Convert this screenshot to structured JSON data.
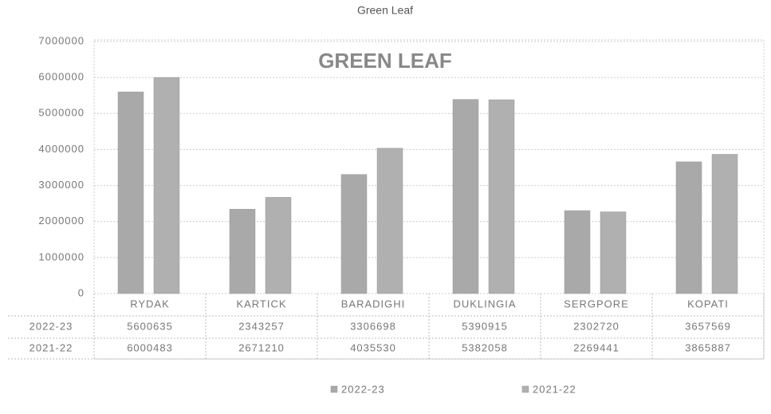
{
  "chart_data": {
    "type": "bar",
    "title": "Green Leaf",
    "subtitle": "GREEN LEAF",
    "categories": [
      "RYDAK",
      "KARTICK",
      "BARADIGHI",
      "DUKLINGIA",
      "SERGPORE",
      "KOPATI"
    ],
    "series": [
      {
        "name": "2022-23",
        "color": "#a9a9a9",
        "values": [
          5600635,
          2343257,
          3306698,
          5390915,
          2302720,
          3657569
        ]
      },
      {
        "name": "2021-22",
        "color": "#b0b0b0",
        "values": [
          6000483,
          2671210,
          4035530,
          5382058,
          2269441,
          3865887
        ]
      }
    ],
    "ylim": [
      0,
      7000000
    ],
    "yticks": [
      0,
      1000000,
      2000000,
      3000000,
      4000000,
      5000000,
      6000000,
      7000000
    ],
    "grid": true,
    "legend": "bottom"
  }
}
